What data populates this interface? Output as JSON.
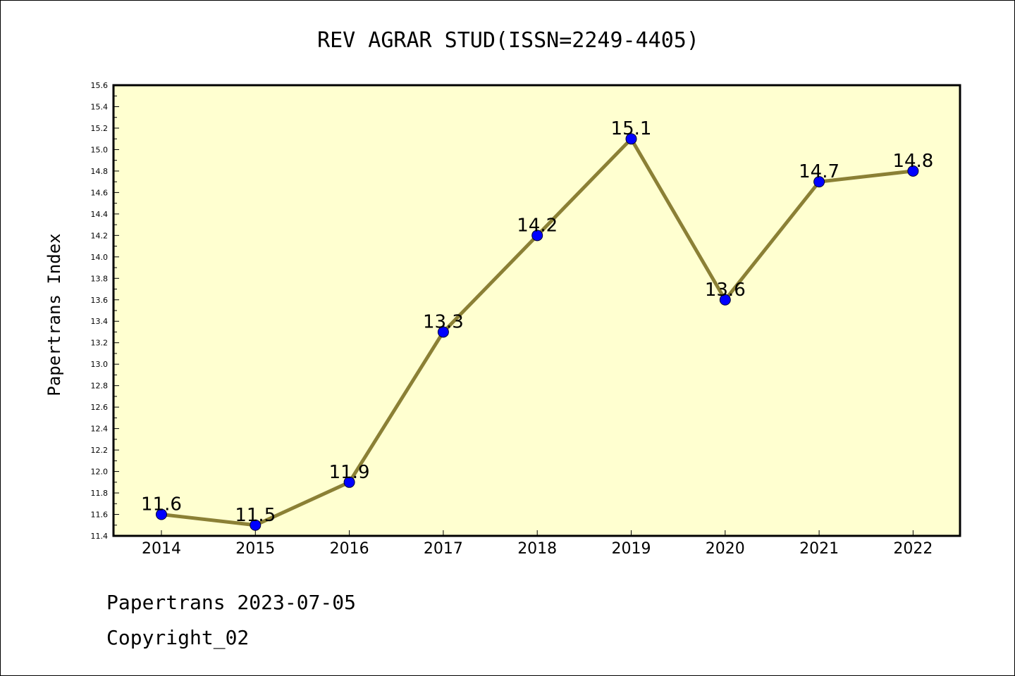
{
  "chart_data": {
    "type": "line",
    "title": "REV AGRAR STUD(ISSN=2249-4405)",
    "xlabel": "",
    "ylabel": "Papertrans Index",
    "categories": [
      "2014",
      "2015",
      "2016",
      "2017",
      "2018",
      "2019",
      "2020",
      "2021",
      "2022"
    ],
    "values": [
      11.6,
      11.5,
      11.9,
      13.3,
      14.2,
      15.1,
      13.6,
      14.7,
      14.8
    ],
    "data_labels": [
      "11.6",
      "11.5",
      "11.9",
      "13.3",
      "14.2",
      "15.1",
      "13.6",
      "14.7",
      "14.8"
    ],
    "ylim": [
      11.4,
      15.6
    ],
    "yticks": [
      "11.4",
      "11.6",
      "11.8",
      "12.0",
      "12.2",
      "12.4",
      "12.6",
      "12.8",
      "13.0",
      "13.2",
      "13.4",
      "13.6",
      "13.8",
      "14.0",
      "14.2",
      "14.4",
      "14.6",
      "14.8",
      "15.0",
      "15.2",
      "15.4",
      "15.6"
    ],
    "grid": false,
    "legend": "none",
    "colors": {
      "plot_background": "#ffffd0",
      "line": "#8b8035",
      "marker": "#0000ff"
    }
  },
  "footer": {
    "line1": "Papertrans 2023-07-05",
    "line2": "Copyright_02"
  }
}
